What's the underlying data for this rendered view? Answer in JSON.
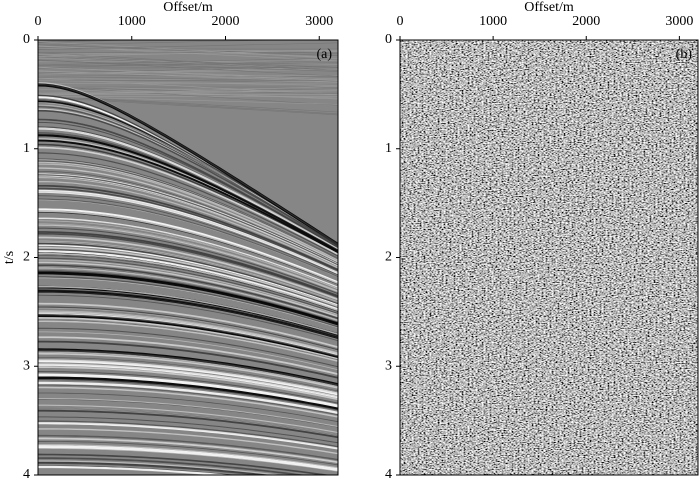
{
  "chart_data": [
    {
      "type": "seismic",
      "x_label": "Offset/m",
      "y_label": "t/s",
      "annotation": "(a)",
      "xlim": [
        0,
        3200
      ],
      "xticks": [
        0,
        1000,
        2000,
        3000
      ],
      "ylim": [
        0,
        4
      ],
      "yticks": [
        0,
        1,
        2,
        3,
        4
      ]
    },
    {
      "type": "seismic",
      "x_label": "Offset/m",
      "annotation": "(b)",
      "xlim": [
        0,
        3200
      ],
      "xticks": [
        0,
        1000,
        2000,
        3000
      ],
      "ylim": [
        0,
        4
      ],
      "yticks": [
        0,
        1,
        2,
        3,
        4
      ]
    }
  ]
}
